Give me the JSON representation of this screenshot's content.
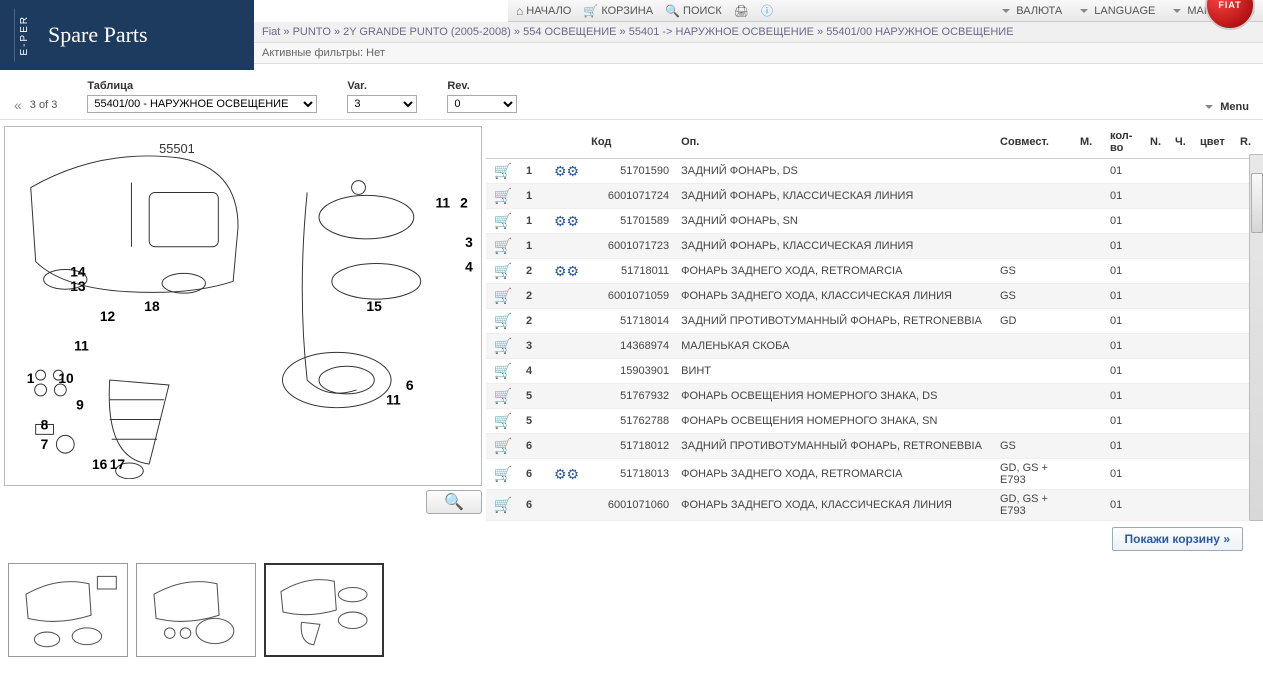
{
  "nav": {
    "home": "НАЧАЛО",
    "cart": "КОРЗИНА",
    "search": "ПОИСК",
    "currency": "ВАЛЮТА",
    "language": "LANGUAGE",
    "brand": "МАРКА"
  },
  "sidebar": {
    "eper": "E-PER",
    "title": "Spare Parts"
  },
  "breadcrumb": {
    "parts": [
      "Fiat",
      "PUNTO",
      "2Y GRANDE PUNTO (2005-2008)",
      "554 ОСВЕЩЕНИЕ",
      "55401 -> НАРУЖНОЕ ОСВЕЩЕНИЕ",
      "55401/00 НАРУЖНОЕ ОСВЕЩЕНИЕ"
    ],
    "sep": " » "
  },
  "filters": {
    "label": "Активные фильтры:",
    "value": "Нет"
  },
  "brand_badge": "FIAT",
  "controls": {
    "pager": "3 of 3",
    "table_label": "Таблица",
    "table_value": "55401/00 - НАРУЖНОЕ ОСВЕЩЕНИЕ",
    "var_label": "Var.",
    "var_value": "3",
    "rev_label": "Rev.",
    "rev_value": "0",
    "menu": "Menu"
  },
  "diagram": {
    "part_number_inset": "55501",
    "callouts": [
      "11",
      "2",
      "3",
      "4",
      "15",
      "6",
      "11",
      "14",
      "13",
      "18",
      "12",
      "11",
      "1",
      "10",
      "9",
      "8",
      "7",
      "17",
      "16"
    ]
  },
  "table": {
    "headers": {
      "code": "Код",
      "desc": "Оп.",
      "compat": "Совмест.",
      "m": "М.",
      "qty": "кол-во",
      "n": "N.",
      "ch": "Ч.",
      "color": "цвет",
      "r": "R."
    },
    "rows": [
      {
        "cart": true,
        "gear": true,
        "pos": "1",
        "code": "51701590",
        "desc": "ЗАДНИЙ ФОНАРЬ, DS",
        "compat": "",
        "qty": "01",
        "alt": false
      },
      {
        "cart": true,
        "gear": false,
        "pos": "1",
        "code": "6001071724",
        "desc": "ЗАДНИЙ ФОНАРЬ, КЛАССИЧЕСКАЯ ЛИНИЯ",
        "compat": "",
        "qty": "01",
        "alt": true
      },
      {
        "cart": true,
        "gear": true,
        "pos": "1",
        "code": "51701589",
        "desc": "ЗАДНИЙ ФОНАРЬ, SN",
        "compat": "",
        "qty": "01",
        "alt": false
      },
      {
        "cart": true,
        "gear": false,
        "pos": "1",
        "code": "6001071723",
        "desc": "ЗАДНИЙ ФОНАРЬ, КЛАССИЧЕСКАЯ ЛИНИЯ",
        "compat": "",
        "qty": "01",
        "alt": true
      },
      {
        "cart": true,
        "gear": true,
        "pos": "2",
        "code": "51718011",
        "desc": "ФОНАРЬ ЗАДНЕГО ХОДА, RETROMARCIA",
        "compat": "GS",
        "qty": "01",
        "alt": false
      },
      {
        "cart": true,
        "gear": false,
        "pos": "2",
        "code": "6001071059",
        "desc": "ФОНАРЬ ЗАДНЕГО ХОДА, КЛАССИЧЕСКАЯ ЛИНИЯ",
        "compat": "GS",
        "qty": "01",
        "alt": true
      },
      {
        "cart": true,
        "gear": false,
        "pos": "2",
        "code": "51718014",
        "desc": "ЗАДНИЙ ПРОТИВОТУМАННЫЙ ФОНАРЬ, RETRONEBBIA",
        "compat": "GD",
        "qty": "01",
        "alt": false
      },
      {
        "cart": true,
        "gear": false,
        "pos": "3",
        "code": "14368974",
        "desc": "МАЛЕНЬКАЯ СКОБА",
        "compat": "",
        "qty": "01",
        "alt": true
      },
      {
        "cart": true,
        "gear": false,
        "pos": "4",
        "code": "15903901",
        "desc": "ВИНТ",
        "compat": "",
        "qty": "01",
        "alt": false
      },
      {
        "cart": true,
        "gear": false,
        "pos": "5",
        "code": "51767932",
        "desc": "ФОНАРЬ ОСВЕЩЕНИЯ НОМЕРНОГО ЗНАКА, DS",
        "compat": "",
        "qty": "01",
        "alt": true
      },
      {
        "cart": true,
        "gear": false,
        "pos": "5",
        "code": "51762788",
        "desc": "ФОНАРЬ ОСВЕЩЕНИЯ НОМЕРНОГО ЗНАКА, SN",
        "compat": "",
        "qty": "01",
        "alt": false
      },
      {
        "cart": true,
        "gear": false,
        "pos": "6",
        "code": "51718012",
        "desc": "ЗАДНИЙ ПРОТИВОТУМАННЫЙ ФОНАРЬ, RETRONEBBIA",
        "compat": "GS",
        "qty": "01",
        "alt": true
      },
      {
        "cart": true,
        "gear": true,
        "pos": "6",
        "code": "51718013",
        "desc": "ФОНАРЬ ЗАДНЕГО ХОДА, RETROMARCIA",
        "compat": "GD, GS + E793",
        "qty": "01",
        "alt": false
      },
      {
        "cart": true,
        "gear": false,
        "pos": "6",
        "code": "6001071060",
        "desc": "ФОНАРЬ ЗАДНЕГО ХОДА, КЛАССИЧЕСКАЯ ЛИНИЯ",
        "compat": "GD, GS + E793",
        "qty": "01",
        "alt": true
      }
    ]
  },
  "show_cart": "Покажи корзину »"
}
